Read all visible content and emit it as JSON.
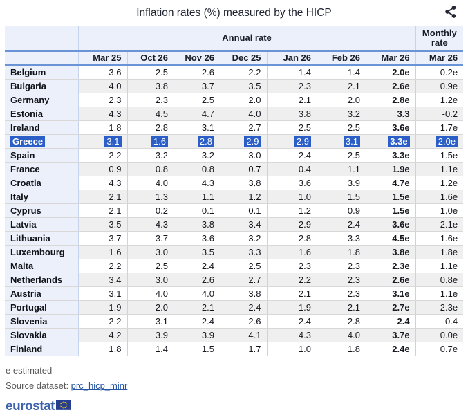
{
  "title": "Inflation rates (%) measured by the HICP",
  "icons": {
    "share": "share-icon",
    "eu_flag": "eu-flag-icon"
  },
  "table": {
    "annual_header": "Annual rate",
    "monthly_header": "Monthly rate",
    "columns": [
      "Mar 25",
      "Oct 26",
      "Nov 26",
      "Dec 25",
      "Jan 26",
      "Feb 26",
      "Mar 26",
      "Mar 26"
    ],
    "rows": [
      {
        "country": "Belgium",
        "values": [
          "3.6",
          "2.5",
          "2.6",
          "2.2",
          "1.4",
          "1.4",
          "2.0e",
          "0.2e"
        ],
        "highlighted": false
      },
      {
        "country": "Bulgaria",
        "values": [
          "4.0",
          "3.8",
          "3.7",
          "3.5",
          "2.3",
          "2.1",
          "2.6e",
          "0.9e"
        ],
        "highlighted": false
      },
      {
        "country": "Germany",
        "values": [
          "2.3",
          "2.3",
          "2.5",
          "2.0",
          "2.1",
          "2.0",
          "2.8e",
          "1.2e"
        ],
        "highlighted": false
      },
      {
        "country": "Estonia",
        "values": [
          "4.3",
          "4.5",
          "4.7",
          "4.0",
          "3.8",
          "3.2",
          "3.3",
          "-0.2"
        ],
        "highlighted": false
      },
      {
        "country": "Ireland",
        "values": [
          "1.8",
          "2.8",
          "3.1",
          "2.7",
          "2.5",
          "2.5",
          "3.6e",
          "1.7e"
        ],
        "highlighted": false
      },
      {
        "country": "Greece",
        "values": [
          "3.1",
          "1.6",
          "2.8",
          "2.9",
          "2.9",
          "3.1",
          "3.3e",
          "2.0e"
        ],
        "highlighted": true
      },
      {
        "country": "Spain",
        "values": [
          "2.2",
          "3.2",
          "3.2",
          "3.0",
          "2.4",
          "2.5",
          "3.3e",
          "1.5e"
        ],
        "highlighted": false
      },
      {
        "country": "France",
        "values": [
          "0.9",
          "0.8",
          "0.8",
          "0.7",
          "0.4",
          "1.1",
          "1.9e",
          "1.1e"
        ],
        "highlighted": false
      },
      {
        "country": "Croatia",
        "values": [
          "4.3",
          "4.0",
          "4.3",
          "3.8",
          "3.6",
          "3.9",
          "4.7e",
          "1.2e"
        ],
        "highlighted": false
      },
      {
        "country": "Italy",
        "values": [
          "2.1",
          "1.3",
          "1.1",
          "1.2",
          "1.0",
          "1.5",
          "1.5e",
          "1.6e"
        ],
        "highlighted": false
      },
      {
        "country": "Cyprus",
        "values": [
          "2.1",
          "0.2",
          "0.1",
          "0.1",
          "1.2",
          "0.9",
          "1.5e",
          "1.0e"
        ],
        "highlighted": false
      },
      {
        "country": "Latvia",
        "values": [
          "3.5",
          "4.3",
          "3.8",
          "3.4",
          "2.9",
          "2.4",
          "3.6e",
          "2.1e"
        ],
        "highlighted": false
      },
      {
        "country": "Lithuania",
        "values": [
          "3.7",
          "3.7",
          "3.6",
          "3.2",
          "2.8",
          "3.3",
          "4.5e",
          "1.6e"
        ],
        "highlighted": false
      },
      {
        "country": "Luxembourg",
        "values": [
          "1.6",
          "3.0",
          "3.5",
          "3.3",
          "1.6",
          "1.8",
          "3.8e",
          "1.8e"
        ],
        "highlighted": false
      },
      {
        "country": "Malta",
        "values": [
          "2.2",
          "2.5",
          "2.4",
          "2.5",
          "2.3",
          "2.3",
          "2.3e",
          "1.1e"
        ],
        "highlighted": false
      },
      {
        "country": "Netherlands",
        "values": [
          "3.4",
          "3.0",
          "2.6",
          "2.7",
          "2.2",
          "2.3",
          "2.6e",
          "0.8e"
        ],
        "highlighted": false
      },
      {
        "country": "Austria",
        "values": [
          "3.1",
          "4.0",
          "4.0",
          "3.8",
          "2.1",
          "2.3",
          "3.1e",
          "1.1e"
        ],
        "highlighted": false
      },
      {
        "country": "Portugal",
        "values": [
          "1.9",
          "2.0",
          "2.1",
          "2.4",
          "1.9",
          "2.1",
          "2.7e",
          "2.3e"
        ],
        "highlighted": false
      },
      {
        "country": "Slovenia",
        "values": [
          "2.2",
          "3.1",
          "2.4",
          "2.6",
          "2.4",
          "2.8",
          "2.4",
          "0.4"
        ],
        "highlighted": false
      },
      {
        "country": "Slovakia",
        "values": [
          "4.2",
          "3.9",
          "3.9",
          "4.1",
          "4.3",
          "4.0",
          "3.7e",
          "0.0e"
        ],
        "highlighted": false
      },
      {
        "country": "Finland",
        "values": [
          "1.8",
          "1.4",
          "1.5",
          "1.7",
          "1.0",
          "1.8",
          "2.4e",
          "0.7e"
        ],
        "highlighted": false
      }
    ]
  },
  "footnote": "e estimated",
  "source": {
    "label": "Source dataset: ",
    "link": "prc_hicp_minr"
  },
  "logo": {
    "text": "eurostat"
  },
  "colors": {
    "selection_blue": "#2B5FC7",
    "header_bg": "#EBF0FA",
    "header_rule_blue": "#6B94D6",
    "alt_row": "#EFEFEF",
    "link_blue": "#2456A4",
    "logo_blue": "#3E63AC",
    "flag_navy": "#253E8F",
    "star_yellow": "#FFCC00",
    "share_icon_dark": "#232936"
  }
}
